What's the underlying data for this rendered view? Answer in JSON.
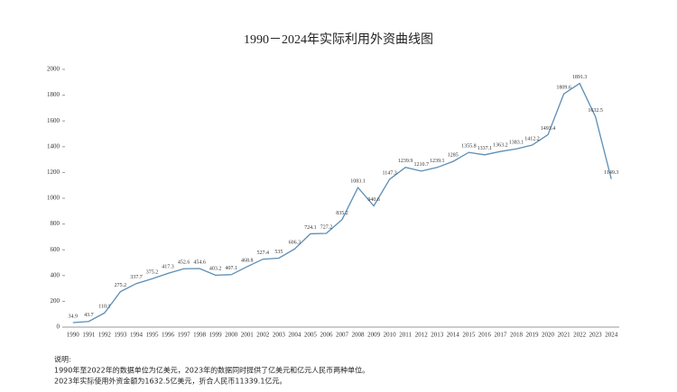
{
  "chart_data": {
    "type": "line",
    "title": "1990－2024年实际利用外资曲线图",
    "categories": [
      "1990",
      "1991",
      "1992",
      "1993",
      "1994",
      "1995",
      "1996",
      "1997",
      "1998",
      "1999",
      "2000",
      "2001",
      "2002",
      "2003",
      "2004",
      "2005",
      "2006",
      "2007",
      "2008",
      "2009",
      "2010",
      "2011",
      "2012",
      "2013",
      "2014",
      "2015",
      "2016",
      "2017",
      "2018",
      "2019",
      "2020",
      "2021",
      "2022",
      "2023",
      "2024"
    ],
    "values": [
      34.9,
      43.7,
      110.1,
      275.2,
      337.7,
      375.2,
      417.3,
      452.6,
      454.6,
      403.2,
      407.1,
      468.8,
      527.4,
      535,
      606.3,
      724.1,
      727.2,
      835.2,
      1083.1,
      940.6,
      1147.3,
      1239.9,
      1210.7,
      1239.1,
      1285,
      1355.8,
      1337.1,
      1363.2,
      1383.1,
      1412.2,
      1493.4,
      1809.6,
      1891.3,
      1632.5,
      1149.3
    ],
    "color": "#5b8db5",
    "ylim": [
      0,
      2000
    ],
    "yticks": [
      0,
      200,
      400,
      600,
      800,
      1000,
      1200,
      1400,
      1600,
      1800,
      2000
    ]
  },
  "notes": [
    "说明:",
    "1990年至2022年的数据单位为亿美元，2023年的数据同时提供了亿美元和亿元人民币两种单位。",
    "2023年实际使用外资金额为1632.5亿美元，折合人民币11339.1亿元。"
  ]
}
